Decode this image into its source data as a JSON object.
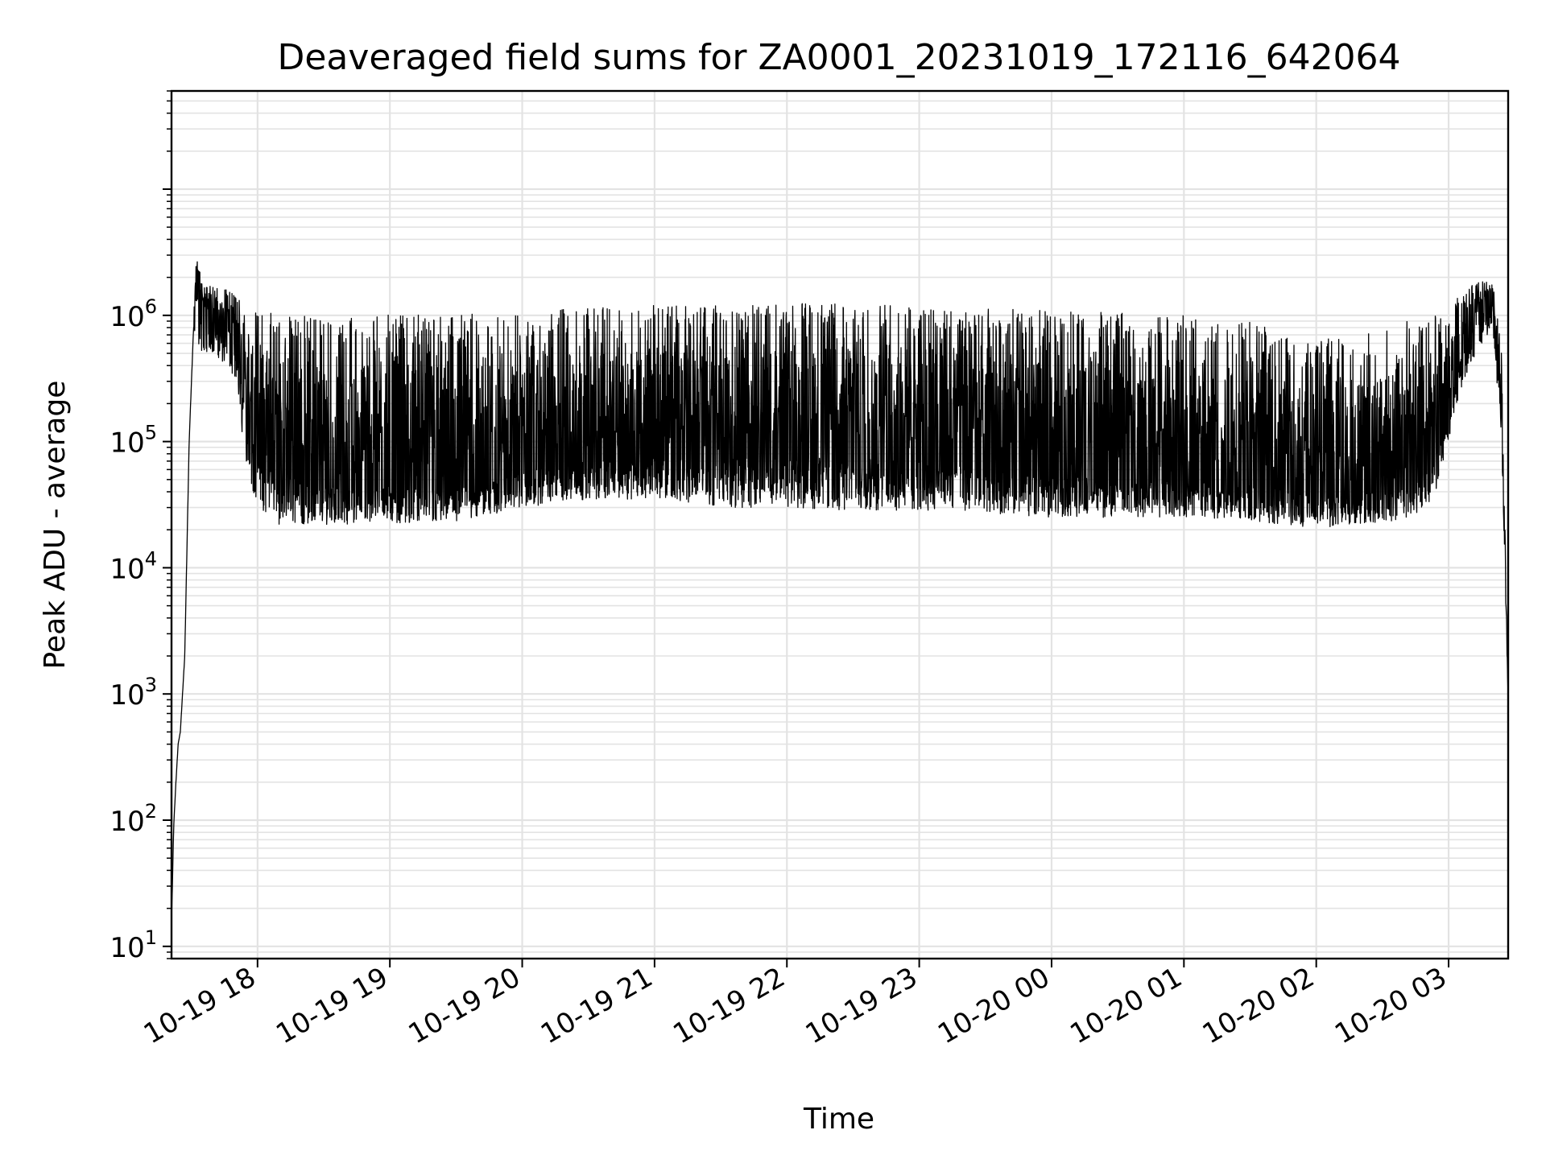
{
  "chart_data": {
    "type": "line",
    "title": "Deaveraged field sums for ZA0001_20231019_172116_642064",
    "xlabel": "Time",
    "ylabel": "Peak ADU - average",
    "xlim": [
      "2023-10-19 17:21",
      "2023-10-20 03:27"
    ],
    "ylim": [
      8,
      60000000
    ],
    "yscale": "log",
    "grid": "major and minor, light gray",
    "legend": "none",
    "line_color": "#000000",
    "x_ticks": [
      {
        "value": "2023-10-19 18:00",
        "label": "10-19 18"
      },
      {
        "value": "2023-10-19 19:00",
        "label": "10-19 19"
      },
      {
        "value": "2023-10-19 20:00",
        "label": "10-19 20"
      },
      {
        "value": "2023-10-19 21:00",
        "label": "10-19 21"
      },
      {
        "value": "2023-10-19 22:00",
        "label": "10-19 22"
      },
      {
        "value": "2023-10-19 23:00",
        "label": "10-19 23"
      },
      {
        "value": "2023-10-20 00:00",
        "label": "10-20 00"
      },
      {
        "value": "2023-10-20 01:00",
        "label": "10-20 01"
      },
      {
        "value": "2023-10-20 02:00",
        "label": "10-20 02"
      },
      {
        "value": "2023-10-20 03:00",
        "label": "10-20 03"
      }
    ],
    "y_ticks": [
      {
        "value": 10,
        "base": "10",
        "exp": "1"
      },
      {
        "value": 100,
        "base": "10",
        "exp": "2"
      },
      {
        "value": 1000,
        "base": "10",
        "exp": "3"
      },
      {
        "value": 10000,
        "base": "10",
        "exp": "4"
      },
      {
        "value": 100000,
        "base": "10",
        "exp": "5"
      },
      {
        "value": 1000000,
        "base": "10",
        "exp": "6"
      }
    ],
    "series": [
      {
        "x": [
          "2023-10-19 17:21",
          "2023-10-19 17:22",
          "2023-10-19 17:23",
          "2023-10-19 17:24",
          "2023-10-19 17:25",
          "2023-10-19 17:27",
          "2023-10-19 17:29",
          "2023-10-19 17:31",
          "2023-10-19 17:32",
          "2023-10-19 17:35",
          "2023-10-19 17:36",
          "2023-10-19 17:37",
          "2023-10-19 17:40",
          "2023-10-19 17:43",
          "2023-10-19 17:46",
          "2023-10-19 17:49",
          "2023-10-19 17:52",
          "2023-10-19 17:55",
          "2023-10-19 17:58",
          "2023-10-19 18:01",
          "2023-10-19 18:05",
          "2023-10-19 18:10",
          "2023-10-19 18:15",
          "2023-10-19 18:20",
          "2023-10-19 18:30",
          "2023-10-19 18:40",
          "2023-10-19 18:50",
          "2023-10-19 19:00",
          "2023-10-19 19:15",
          "2023-10-19 19:30",
          "2023-10-19 19:45",
          "2023-10-19 20:00",
          "2023-10-19 20:30",
          "2023-10-19 21:00",
          "2023-10-19 21:30",
          "2023-10-19 22:00",
          "2023-10-19 22:30",
          "2023-10-19 23:00",
          "2023-10-19 23:30",
          "2023-10-20 00:00",
          "2023-10-20 00:30",
          "2023-10-20 01:00",
          "2023-10-20 01:30",
          "2023-10-20 01:55",
          "2023-10-20 02:15",
          "2023-10-20 02:30",
          "2023-10-20 02:45",
          "2023-10-20 02:55",
          "2023-10-20 03:00",
          "2023-10-20 03:05",
          "2023-10-20 03:10",
          "2023-10-20 03:15",
          "2023-10-20 03:20",
          "2023-10-20 03:24",
          "2023-10-20 03:27"
        ],
        "y": [
          15,
          90,
          200,
          400,
          500,
          2000,
          100000,
          800000,
          3300000,
          1600000,
          1400000,
          1300000,
          1500000,
          1450000,
          1400000,
          1300000,
          700000,
          250000,
          300000,
          200000,
          150000,
          120000,
          100000,
          90000,
          80000,
          70000,
          70000,
          70000,
          65000,
          65000,
          75000,
          90000,
          110000,
          120000,
          130000,
          150000,
          140000,
          130000,
          110000,
          90000,
          80000,
          75000,
          70000,
          60000,
          55000,
          60000,
          70000,
          150000,
          300000,
          600000,
          1000000,
          1500000,
          1700000,
          200000,
          900
        ],
        "low": [
          15,
          90,
          200,
          400,
          500,
          2000,
          100000,
          800000,
          600000,
          500000,
          500000,
          500000,
          500000,
          450000,
          400000,
          300000,
          150000,
          60000,
          40000,
          30000,
          25000,
          22000,
          22000,
          22000,
          22000,
          22000,
          23000,
          23000,
          22000,
          23000,
          25000,
          30000,
          35000,
          35000,
          30000,
          30000,
          28000,
          28000,
          27000,
          25000,
          25000,
          25000,
          24000,
          20000,
          22000,
          23000,
          25000,
          40000,
          100000,
          250000,
          400000,
          600000,
          800000,
          100000,
          900
        ],
        "high": [
          15,
          90,
          200,
          400,
          500,
          2000,
          100000,
          800000,
          3300000,
          1700000,
          1700000,
          1700000,
          1700000,
          1650000,
          1600000,
          1500000,
          1300000,
          1200000,
          1150000,
          1100000,
          1100000,
          1000000,
          1000000,
          1000000,
          1000000,
          1000000,
          1000000,
          1050000,
          1000000,
          1000000,
          1050000,
          1100000,
          1150000,
          1200000,
          1200000,
          1250000,
          1300000,
          1200000,
          1150000,
          1100000,
          1050000,
          1000000,
          900000,
          600000,
          700000,
          800000,
          950000,
          1000000,
          1200000,
          1500000,
          1800000,
          1850000,
          1850000,
          600000,
          900
        ]
      }
    ]
  }
}
